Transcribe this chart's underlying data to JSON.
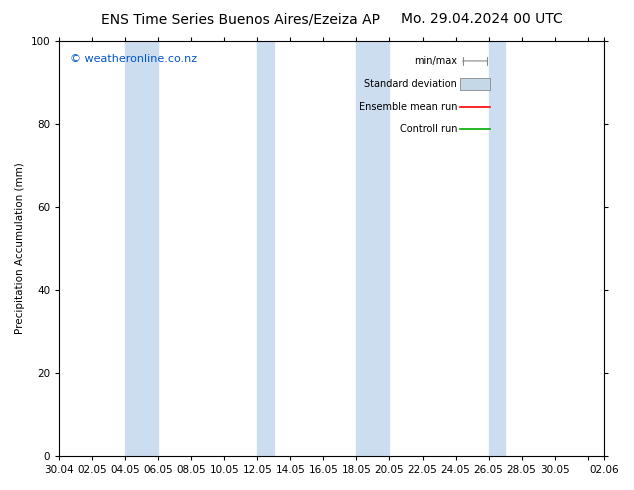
{
  "title_left": "ENS Time Series Buenos Aires/Ezeiza AP",
  "title_right": "Mo. 29.04.2024 00 UTC",
  "ylabel": "Precipitation Accumulation (mm)",
  "watermark": "© weatheronline.co.nz",
  "ylim": [
    0,
    100
  ],
  "yticks": [
    0,
    20,
    40,
    60,
    80,
    100
  ],
  "xtick_labels": [
    "30.04",
    "02.05",
    "04.05",
    "06.05",
    "08.05",
    "10.05",
    "12.05",
    "14.05",
    "16.05",
    "18.05",
    "20.05",
    "22.05",
    "24.05",
    "26.05",
    "28.05",
    "30.05",
    "",
    "02.06"
  ],
  "bg_color": "#ffffff",
  "plot_bg_color": "#ffffff",
  "band_color": "#ccddf0",
  "band_indices": [
    2,
    3,
    6,
    9,
    10,
    13,
    17
  ],
  "legend_items": [
    "min/max",
    "Standard deviation",
    "Ensemble mean run",
    "Controll run"
  ],
  "legend_colors": [
    "#a0a0a0",
    "#b8ccd8",
    "#ff0000",
    "#00aa00"
  ],
  "title_fontsize": 10,
  "axis_fontsize": 7.5,
  "watermark_color": "#0055cc",
  "watermark_fontsize": 8
}
